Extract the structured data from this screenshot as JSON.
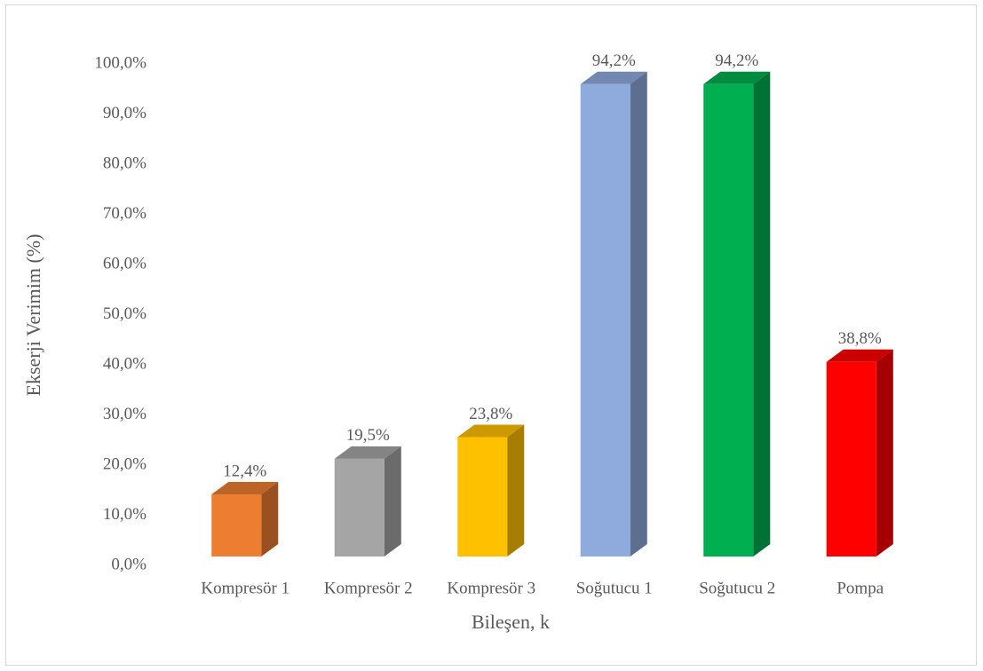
{
  "chart_data": {
    "type": "bar3d",
    "categories": [
      "Kompresör 1",
      "Kompresör 2",
      "Kompresör 3",
      "Soğutucu 1",
      "Soğutucu 2",
      "Pompa"
    ],
    "values": [
      12.4,
      19.5,
      23.8,
      94.2,
      94.2,
      38.8
    ],
    "value_labels": [
      "12,4%",
      "19,5%",
      "23,8%",
      "94,2%",
      "94,2%",
      "38,8%"
    ],
    "colors": [
      "#ed7d31",
      "#a5a5a5",
      "#ffc000",
      "#8faadc",
      "#00b050",
      "#ff0000"
    ],
    "xlabel": "Bileşen, k",
    "ylabel": "Ekserji Verimim (%)",
    "ylim": [
      0,
      100
    ],
    "yticks": [
      {
        "value": 0,
        "label": "0,0%"
      },
      {
        "value": 10,
        "label": "10,0%"
      },
      {
        "value": 20,
        "label": "20,0%"
      },
      {
        "value": 30,
        "label": "30,0%"
      },
      {
        "value": 40,
        "label": "40,0%"
      },
      {
        "value": 50,
        "label": "50,0%"
      },
      {
        "value": 60,
        "label": "60,0%"
      },
      {
        "value": 70,
        "label": "70,0%"
      },
      {
        "value": 80,
        "label": "80,0%"
      },
      {
        "value": 90,
        "label": "90,0%"
      },
      {
        "value": 100,
        "label": "100,0%"
      }
    ],
    "grid": false
  }
}
